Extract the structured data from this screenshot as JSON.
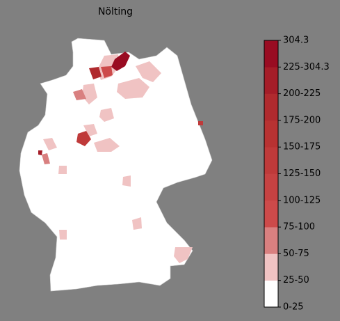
{
  "title": "Nölting",
  "colorbar": {
    "labels": [
      "0-25",
      "25-50",
      "50-75",
      "75-100",
      "100-125",
      "125-150",
      "150-175",
      "175-200",
      "200-225",
      "225-304.3",
      "304.3"
    ],
    "colors": [
      "#ffffff",
      "#f0c3c3",
      "#d98080",
      "#cd4a4a",
      "#c64242",
      "#bf3a3a",
      "#b83232",
      "#b02a2e",
      "#a51d28",
      "#990c22"
    ]
  }
}
